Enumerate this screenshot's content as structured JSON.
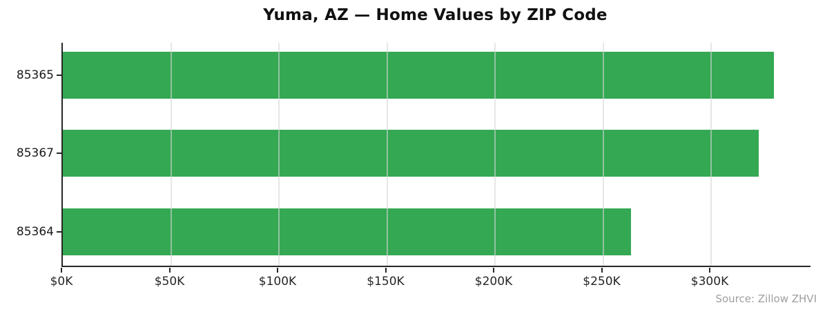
{
  "chart_data": {
    "type": "bar",
    "orientation": "horizontal",
    "title": "Yuma, AZ — Home Values by ZIP Code",
    "xlabel": "",
    "ylabel": "",
    "categories": [
      "85365",
      "85367",
      "85364"
    ],
    "values": [
      329000,
      322000,
      263000
    ],
    "xlim": [
      0,
      346000
    ],
    "x_ticks": [
      {
        "value": 0,
        "label": "$0K"
      },
      {
        "value": 50000,
        "label": "$50K"
      },
      {
        "value": 100000,
        "label": "$100K"
      },
      {
        "value": 150000,
        "label": "$150K"
      },
      {
        "value": 200000,
        "label": "$200K"
      },
      {
        "value": 250000,
        "label": "$250K"
      },
      {
        "value": 300000,
        "label": "$300K"
      }
    ],
    "grid": true,
    "legend": null,
    "bar_color": "#34a853",
    "axis_color": "#262626",
    "grid_color": "#e6e6e6",
    "source_note": "Source: Zillow ZHVI"
  }
}
